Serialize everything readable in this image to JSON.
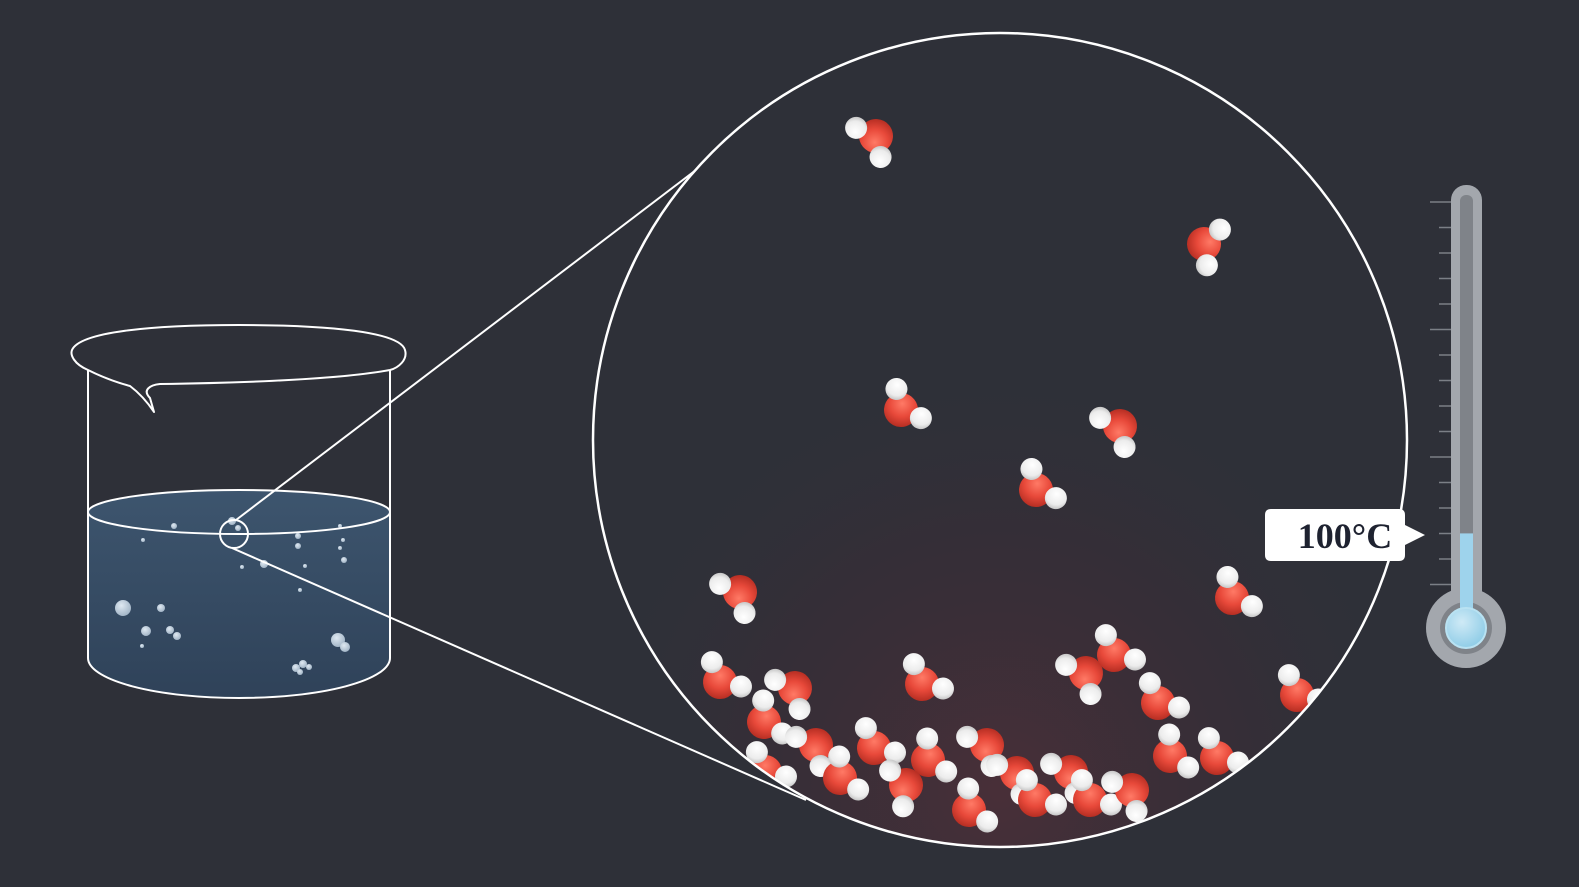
{
  "thermometer": {
    "reading": "100°C",
    "level": 0.18
  },
  "molecule": {
    "name": "water",
    "oxygen_color": "#e8493a",
    "hydrogen_color": "#f1f1f1"
  },
  "colors": {
    "background": "#2e3038",
    "outline": "#ffffff",
    "water": "#3a5068",
    "mercury": "#9ed3ec"
  }
}
